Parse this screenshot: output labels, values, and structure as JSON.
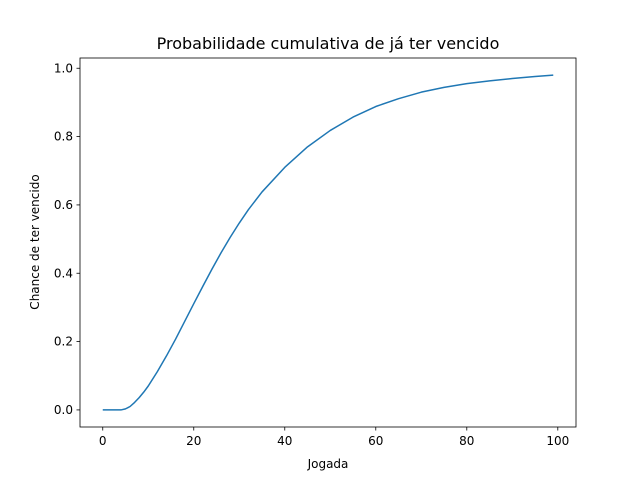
{
  "chart_data": {
    "type": "line",
    "title": "Probabilidade cumulativa de já ter vencido",
    "xlabel": "Jogada",
    "ylabel": "Chance de ter vencido",
    "xlim": [
      -5,
      104
    ],
    "ylim": [
      -0.05,
      1.03
    ],
    "xticks": [
      0,
      20,
      40,
      60,
      80,
      100
    ],
    "xtick_labels": [
      "0",
      "20",
      "40",
      "60",
      "80",
      "100"
    ],
    "yticks": [
      0.0,
      0.2,
      0.4,
      0.6,
      0.8,
      1.0
    ],
    "ytick_labels": [
      "0.0",
      "0.2",
      "0.4",
      "0.6",
      "0.8",
      "1.0"
    ],
    "grid": false,
    "line_color": "#1f77b4",
    "series": [
      {
        "x": [
          0,
          2,
          4,
          5,
          6,
          7,
          8,
          9,
          10,
          12,
          14,
          16,
          18,
          20,
          22,
          24,
          26,
          28,
          30,
          32,
          35,
          40,
          45,
          50,
          55,
          60,
          65,
          70,
          75,
          80,
          85,
          90,
          95,
          99
        ],
        "values": [
          0.0,
          0.0,
          0.0,
          0.003,
          0.01,
          0.022,
          0.036,
          0.052,
          0.07,
          0.112,
          0.158,
          0.207,
          0.259,
          0.311,
          0.362,
          0.412,
          0.46,
          0.505,
          0.547,
          0.586,
          0.638,
          0.71,
          0.77,
          0.818,
          0.857,
          0.888,
          0.911,
          0.93,
          0.944,
          0.955,
          0.963,
          0.97,
          0.976,
          0.98
        ]
      }
    ]
  }
}
